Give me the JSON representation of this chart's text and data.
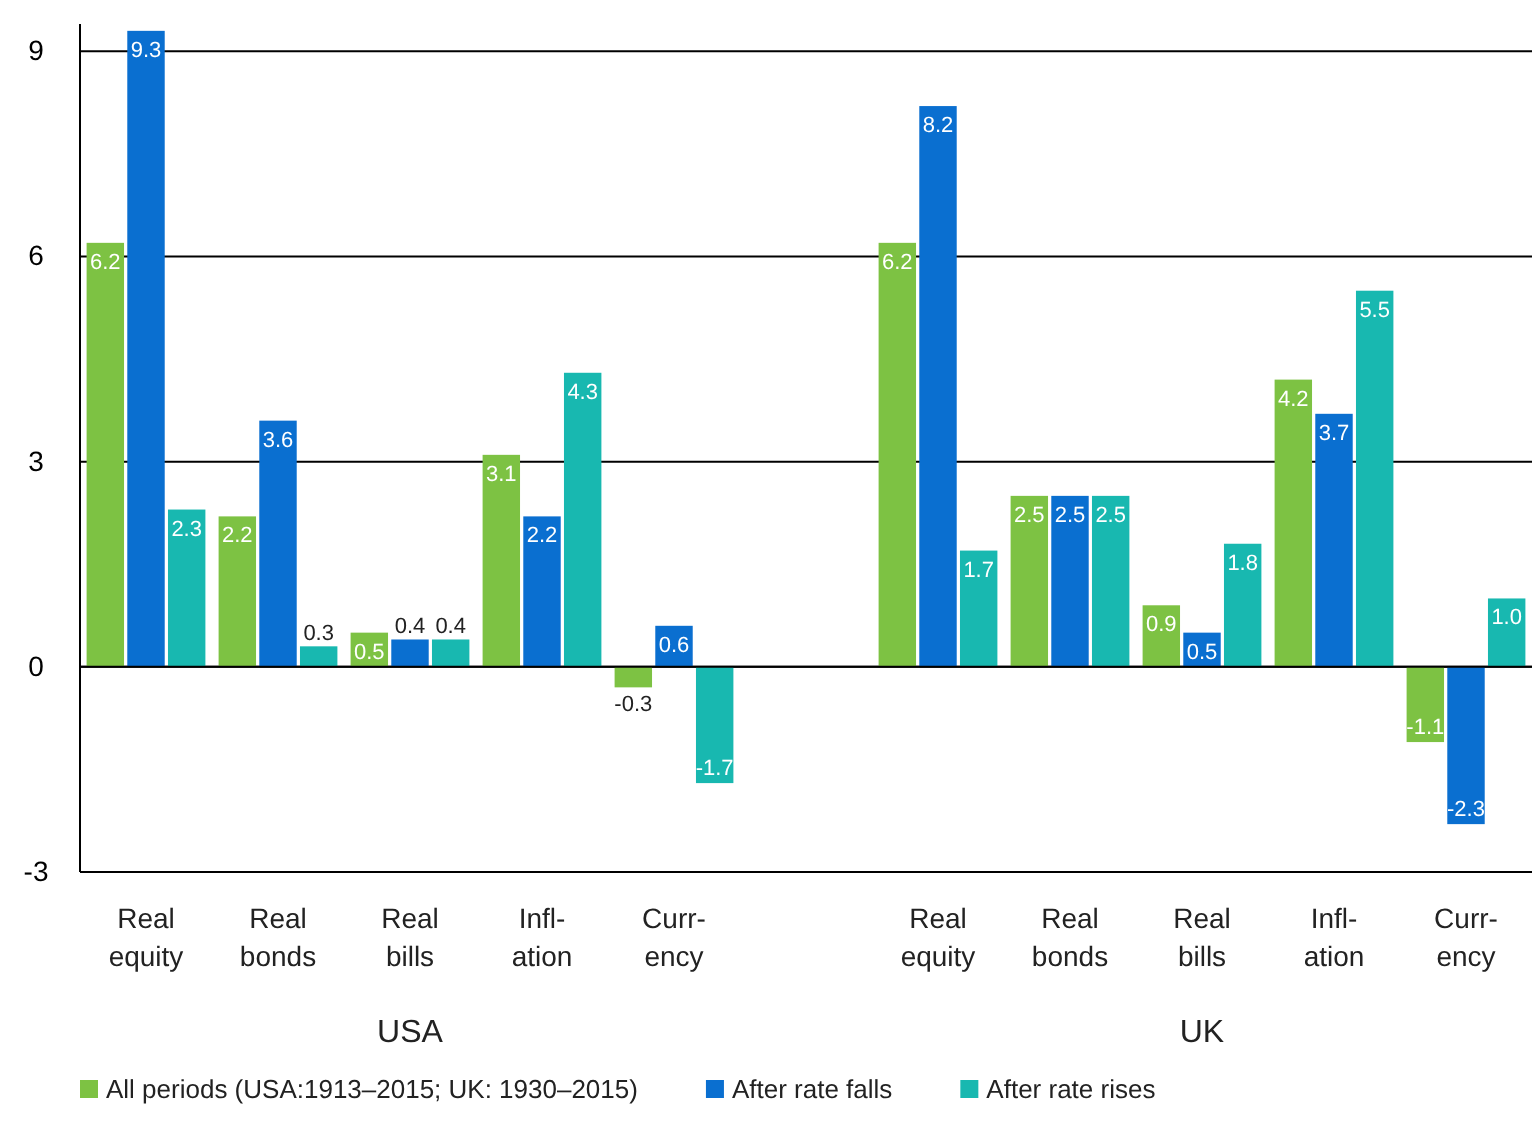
{
  "chart_data": {
    "type": "bar",
    "categories": [
      "Real\nequity",
      "Real\nbonds",
      "Real\nbills",
      "Infl-\nation",
      "Curr-\nency",
      null,
      "Real\nequity",
      "Real\nbonds",
      "Real\nbills",
      "Infl-\nation",
      "Curr-\nency"
    ],
    "series": [
      {
        "name": "All periods (USA:1913–2015; UK: 1930–2015)",
        "color": "#7dc243",
        "values": [
          6.2,
          2.2,
          0.5,
          3.1,
          -0.3,
          null,
          6.2,
          2.5,
          0.9,
          4.2,
          -1.1
        ],
        "value_labels": [
          "6.2",
          "2.2",
          "0.5",
          "3.1",
          "-0.3",
          null,
          "6.2",
          "2.5",
          "0.9",
          "4.2",
          "-1.1"
        ]
      },
      {
        "name": "After rate falls",
        "color": "#0a6fd0",
        "values": [
          9.3,
          3.6,
          0.4,
          2.2,
          0.6,
          null,
          8.2,
          2.5,
          0.5,
          3.7,
          -2.3
        ],
        "value_labels": [
          "9.3",
          "3.6",
          "0.4",
          "2.2",
          "0.6",
          null,
          "8.2",
          "2.5",
          "0.5",
          "3.7",
          "-2.3"
        ]
      },
      {
        "name": "After rate rises",
        "color": "#18b8b0",
        "values": [
          2.3,
          0.3,
          0.4,
          4.3,
          -1.7,
          null,
          1.7,
          2.5,
          1.8,
          5.5,
          1.0
        ],
        "value_labels": [
          "2.3",
          "0.3",
          "0.4",
          "4.3",
          "-1.7",
          null,
          "1.7",
          "2.5",
          "1.8",
          "5.5",
          "1.0"
        ]
      }
    ],
    "annotations": [
      "USA",
      "UK"
    ],
    "ylim": [
      -3,
      9.4
    ],
    "yticks": [
      -3,
      0,
      3,
      6,
      9
    ],
    "grid": "y",
    "legend": "bottom"
  }
}
